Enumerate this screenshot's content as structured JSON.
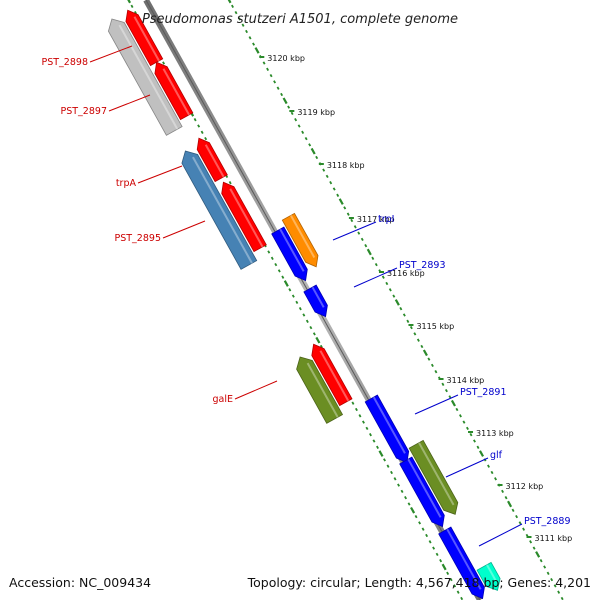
{
  "title": "Pseudomonas stutzeri A1501, complete genome",
  "accession": "Accession: NC_009434",
  "summary": "Topology: circular; Length: 4,567,418 bp; Genes: 4,201",
  "colors": {
    "background": "#ffffff",
    "backbone": "#888888",
    "tick": "#2a8a2a",
    "label_forward": "#0000cc",
    "label_reverse": "#cc0000"
  },
  "kbp_ticks": [
    {
      "kbp": 3120,
      "label": "3120 kbp"
    },
    {
      "kbp": 3119,
      "label": "3119 kbp"
    },
    {
      "kbp": 3118,
      "label": "3118 kbp"
    },
    {
      "kbp": 3117,
      "label": "3117 kbp"
    },
    {
      "kbp": 3116,
      "label": "3116 kbp"
    },
    {
      "kbp": 3115,
      "label": "3115 kbp"
    },
    {
      "kbp": 3114,
      "label": "3114 kbp"
    },
    {
      "kbp": 3113,
      "label": "3113 kbp"
    },
    {
      "kbp": 3112,
      "label": "3112 kbp"
    },
    {
      "kbp": 3111,
      "label": "3111 kbp"
    }
  ],
  "gene_labels": [
    {
      "name": "PST_2898",
      "strand": "reverse"
    },
    {
      "name": "PST_2897",
      "strand": "reverse"
    },
    {
      "name": "trpA",
      "strand": "reverse"
    },
    {
      "name": "PST_2895",
      "strand": "reverse"
    },
    {
      "name": "galE",
      "strand": "reverse"
    },
    {
      "name": "trpI",
      "strand": "forward"
    },
    {
      "name": "PST_2893",
      "strand": "forward"
    },
    {
      "name": "PST_2891",
      "strand": "forward"
    },
    {
      "name": "glf",
      "strand": "forward"
    },
    {
      "name": "PST_2889",
      "strand": "forward"
    }
  ],
  "features": [
    {
      "color": "#ff0000",
      "strand": "reverse"
    },
    {
      "color": "#ff0000",
      "strand": "reverse"
    },
    {
      "color": "#c0c0c0",
      "strand": "reverse"
    },
    {
      "color": "#ff0000",
      "strand": "reverse"
    },
    {
      "color": "#ff0000",
      "strand": "reverse"
    },
    {
      "color": "#4682b4",
      "strand": "reverse"
    },
    {
      "color": "#ff0000",
      "strand": "reverse"
    },
    {
      "color": "#6b8e23",
      "strand": "reverse"
    },
    {
      "color": "#ff8c00",
      "strand": "forward"
    },
    {
      "color": "#0000ff",
      "strand": "forward"
    },
    {
      "color": "#0000ff",
      "strand": "forward"
    },
    {
      "color": "#0000ff",
      "strand": "forward"
    },
    {
      "color": "#0000ff",
      "strand": "forward"
    },
    {
      "color": "#6b8e23",
      "strand": "forward"
    },
    {
      "color": "#0000ff",
      "strand": "forward"
    },
    {
      "color": "#00ffcc",
      "strand": "forward"
    }
  ]
}
